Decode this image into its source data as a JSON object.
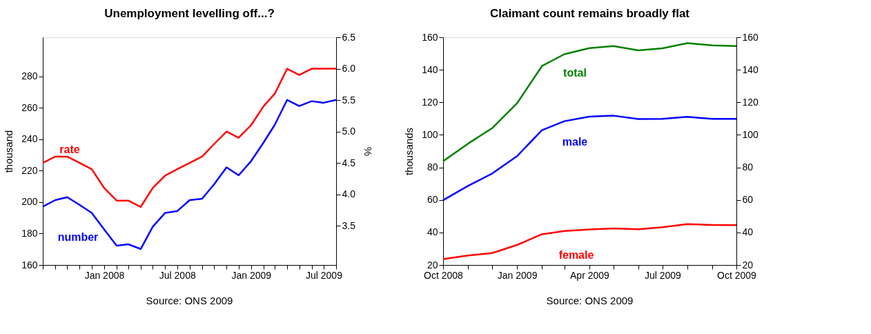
{
  "chart_data": [
    {
      "type": "line",
      "title": "Unemployment levelling off...?",
      "ylabel": "thousand",
      "y2label": "%",
      "x": [
        "2007-08",
        "2007-09",
        "2007-10",
        "2007-11",
        "2007-12",
        "2008-01",
        "2008-02",
        "2008-03",
        "2008-04",
        "2008-05",
        "2008-06",
        "2008-07",
        "2008-08",
        "2008-09",
        "2008-10",
        "2008-11",
        "2008-12",
        "2009-01",
        "2009-02",
        "2009-03",
        "2009-04",
        "2009-05",
        "2009-06",
        "2009-07",
        "2009-08"
      ],
      "series": [
        {
          "name": "number",
          "color": "#0000ff",
          "values": [
            197.2,
            201.3,
            203.2,
            198.2,
            193.2,
            182.6,
            172.3,
            173.2,
            170.2,
            184.3,
            193.2,
            194.3,
            201.3,
            202.2,
            211.4,
            222.2,
            217.1,
            226.1,
            237.9,
            249.2,
            265.1,
            261.2,
            264.3,
            263.3,
            265.1
          ]
        },
        {
          "name": "rate",
          "color": "#ff0000",
          "axis": "y2",
          "values": [
            4.5,
            4.6,
            4.6,
            4.5,
            4.4,
            4.1,
            3.9,
            3.9,
            3.8,
            4.1,
            4.3,
            4.4,
            4.5,
            4.6,
            4.8,
            5.0,
            4.9,
            5.1,
            5.4,
            5.6,
            6.0,
            5.9,
            6.0,
            6.0,
            6.0
          ]
        }
      ],
      "xlim": [
        "2007-08",
        "2009-08"
      ],
      "xticks": [
        {
          "value": "2007-08",
          "label": null
        },
        {
          "value": "2007-09",
          "label": null
        },
        {
          "value": "2007-10",
          "label": null
        },
        {
          "value": "2007-11",
          "label": null
        },
        {
          "value": "2007-12",
          "label": null
        },
        {
          "value": "2008-01",
          "label": "Jan 2008"
        },
        {
          "value": "2008-02",
          "label": null
        },
        {
          "value": "2008-03",
          "label": null
        },
        {
          "value": "2008-04",
          "label": null
        },
        {
          "value": "2008-05",
          "label": null
        },
        {
          "value": "2008-06",
          "label": null
        },
        {
          "value": "2008-07",
          "label": "Jul 2008"
        },
        {
          "value": "2008-08",
          "label": null
        },
        {
          "value": "2008-09",
          "label": null
        },
        {
          "value": "2008-10",
          "label": null
        },
        {
          "value": "2008-11",
          "label": null
        },
        {
          "value": "2008-12",
          "label": null
        },
        {
          "value": "2009-01",
          "label": "Jan 2009"
        },
        {
          "value": "2009-02",
          "label": null
        },
        {
          "value": "2009-03",
          "label": null
        },
        {
          "value": "2009-04",
          "label": null
        },
        {
          "value": "2009-05",
          "label": null
        },
        {
          "value": "2009-06",
          "label": null
        },
        {
          "value": "2009-07",
          "label": "Jul 2009"
        },
        {
          "value": "2009-08",
          "label": null
        }
      ],
      "ylim": [
        160,
        305
      ],
      "yticks": [
        160,
        180,
        200,
        220,
        240,
        260,
        280
      ],
      "y2lim": [
        2.875,
        6.5
      ],
      "y2ticks": [
        {
          "value": 3.5,
          "label": "3.5"
        },
        {
          "value": 4.0,
          "label": "4.0"
        },
        {
          "value": 4.5,
          "label": "4.5"
        },
        {
          "value": 5.0,
          "label": "5.0"
        },
        {
          "value": 5.5,
          "label": "5.5"
        },
        {
          "value": 6.0,
          "label": "6.0"
        },
        {
          "value": 6.5,
          "label": "6.5"
        }
      ],
      "grid": false,
      "legend": false,
      "annotations": [
        "Source: ONS 2009"
      ]
    },
    {
      "type": "line",
      "title": "Claimant count remains broadly flat",
      "ylabel": "thousands",
      "x": [
        "2008-10",
        "2008-11",
        "2008-12",
        "2009-01",
        "2009-02",
        "2009-03",
        "2009-04",
        "2009-05",
        "2009-06",
        "2009-07",
        "2009-08",
        "2009-09",
        "2009-10"
      ],
      "series": [
        {
          "name": "total",
          "color": "#008000",
          "values": [
            83.8,
            94.6,
            104.1,
            119.4,
            142.3,
            149.6,
            153.3,
            154.6,
            151.9,
            153.2,
            156.4,
            155.0,
            154.6
          ]
        },
        {
          "name": "male",
          "color": "#0000ff",
          "values": [
            59.8,
            68.6,
            76.2,
            86.9,
            102.9,
            108.4,
            111.2,
            111.8,
            109.7,
            109.8,
            111.1,
            109.8,
            109.8
          ]
        },
        {
          "name": "female",
          "color": "#ff0000",
          "values": [
            23.6,
            25.8,
            27.3,
            32.3,
            38.9,
            40.9,
            41.8,
            42.5,
            42.0,
            43.2,
            45.1,
            44.6,
            44.5
          ]
        }
      ],
      "xlim": [
        "2008-10",
        "2009-10"
      ],
      "xticks": [
        {
          "value": "2008-10",
          "label": "Oct 2008"
        },
        {
          "value": "2008-11",
          "label": null
        },
        {
          "value": "2008-12",
          "label": null
        },
        {
          "value": "2009-01",
          "label": "Jan 2009"
        },
        {
          "value": "2009-02",
          "label": null
        },
        {
          "value": "2009-03",
          "label": null
        },
        {
          "value": "2009-04",
          "label": "Apr 2009"
        },
        {
          "value": "2009-05",
          "label": null
        },
        {
          "value": "2009-06",
          "label": null
        },
        {
          "value": "2009-07",
          "label": "Jul 2009"
        },
        {
          "value": "2009-08",
          "label": null
        },
        {
          "value": "2009-09",
          "label": null
        },
        {
          "value": "2009-10",
          "label": "Oct 2009"
        }
      ],
      "ylim": [
        20,
        160
      ],
      "yticks": [
        20,
        40,
        60,
        80,
        100,
        120,
        140,
        160
      ],
      "y2lim": [
        20,
        160
      ],
      "y2ticks": [
        20,
        40,
        60,
        80,
        100,
        120,
        140,
        160
      ],
      "grid": false,
      "legend": false,
      "annotations": [
        "Source: ONS 2009"
      ]
    }
  ]
}
